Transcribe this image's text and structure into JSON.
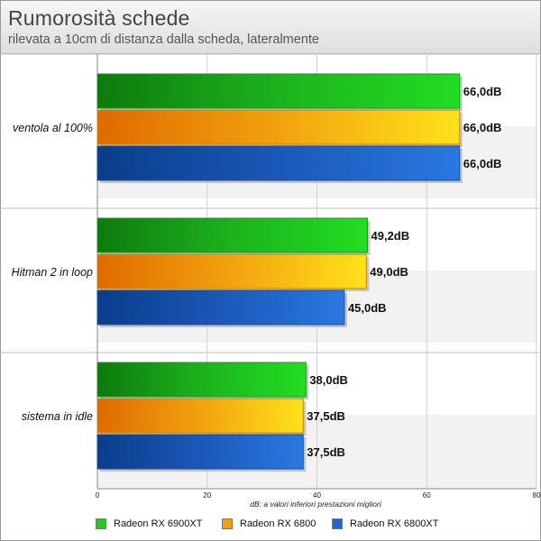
{
  "header": {
    "title": "Rumorosità schede",
    "subtitle": "rilevata a 10cm di distanza dalla scheda, lateralmente"
  },
  "chart_data": {
    "type": "bar",
    "orientation": "horizontal",
    "title": "Rumorosità schede",
    "subtitle": "rilevata a 10cm di distanza dalla scheda, lateralmente",
    "xlabel": "dB: a valori inferiori prestazioni migliori",
    "ylabel": "",
    "xlim": [
      0,
      80
    ],
    "x_ticks": [
      "0",
      "20",
      "40",
      "60",
      "80"
    ],
    "grid": true,
    "legend_position": "bottom",
    "categories": [
      "ventola al 100%",
      "Hitman 2 in loop",
      "sistema in idle"
    ],
    "series": [
      {
        "name": "Radeon RX 6900XT",
        "color": "#22cc22",
        "values": [
          66.0,
          49.2,
          38.0
        ],
        "labels": [
          "66,0dB",
          "49,2dB",
          "38,0dB"
        ]
      },
      {
        "name": "Radeon RX 6800",
        "color": "#f0a010",
        "values": [
          66.0,
          49.0,
          37.5
        ],
        "labels": [
          "66,0dB",
          "49,0dB",
          "37,5dB"
        ]
      },
      {
        "name": "Radeon RX 6800XT",
        "color": "#2266cc",
        "values": [
          66.0,
          45.0,
          37.5
        ],
        "labels": [
          "66,0dB",
          "45,0dB",
          "37,5dB"
        ]
      }
    ]
  }
}
